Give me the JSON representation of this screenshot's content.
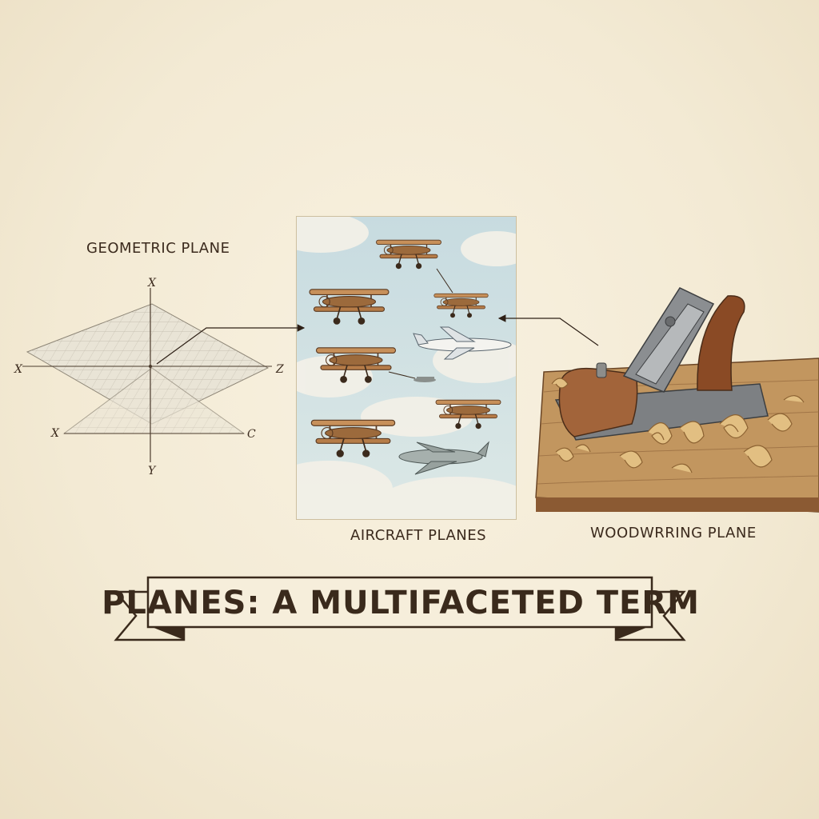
{
  "title": "PLANES: A MULTIFACETED TERM",
  "panels": {
    "geometric": {
      "label": "GEOMETRIC PLANE",
      "axes": {
        "top": "X",
        "left": "X",
        "right": "Z",
        "lower_left": "X",
        "lower_right": "C",
        "bottom": "Y"
      }
    },
    "aircraft": {
      "label": "AIRCRAFT PLANES"
    },
    "woodworking": {
      "label": "WOODWRRING PLANE"
    }
  },
  "colors": {
    "background": "#f5eedb",
    "ink": "#3a2a1c",
    "sky": "#cfe0e2",
    "wood": "#a4683a",
    "steel": "#7b7e80"
  },
  "icons": [
    "biplane-icon",
    "airliner-icon",
    "fighter-icon",
    "hand-plane-icon",
    "wood-shavings-icon"
  ]
}
